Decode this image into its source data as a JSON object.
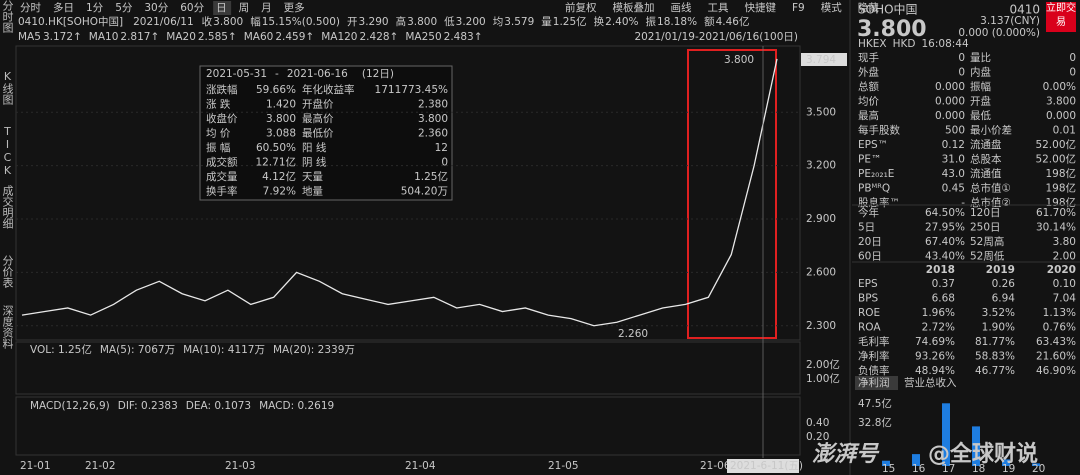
{
  "toolbar": {
    "left": [
      "分时",
      "多日",
      "1分",
      "5分",
      "30分",
      "60分",
      "日",
      "周",
      "月",
      "更多"
    ],
    "right": [
      "前复权",
      "模板叠加",
      "画线",
      "工具",
      "快捷键",
      "F9",
      "模式",
      "隐藏"
    ]
  },
  "side_tabs": [
    "分时图",
    "K线图",
    "TICK",
    "成交明细",
    "分价表",
    "深度资料"
  ],
  "info": {
    "code": "0410.HK[SOHO中国]",
    "date": "2021/06/11",
    "items": [
      {
        "label": "收",
        "value": "3.800"
      },
      {
        "label": "幅",
        "value": "15.15%(0.500)"
      },
      {
        "label": "开",
        "value": "3.290"
      },
      {
        "label": "高",
        "value": "3.800"
      },
      {
        "label": "低",
        "value": "3.200"
      },
      {
        "label": "均",
        "value": "3.579"
      },
      {
        "label": "量",
        "value": "1.25亿"
      },
      {
        "label": "换",
        "value": "2.40%"
      },
      {
        "label": "振",
        "value": "18.18%"
      },
      {
        "label": "额",
        "value": "4.46亿"
      }
    ]
  },
  "ma_bar": {
    "items": [
      {
        "label": "MA5",
        "value": "3.172↑"
      },
      {
        "label": "MA10",
        "value": "2.817↑"
      },
      {
        "label": "MA20",
        "value": "2.585↑"
      },
      {
        "label": "MA60",
        "value": "2.459↑"
      },
      {
        "label": "MA120",
        "value": "2.428↑"
      },
      {
        "label": "MA250",
        "value": "2.483↑"
      }
    ],
    "range": "2021/01/19-2021/06/16(100日)"
  },
  "price_chart": {
    "closes": [
      2.36,
      2.38,
      2.4,
      2.36,
      2.42,
      2.5,
      2.55,
      2.48,
      2.44,
      2.5,
      2.42,
      2.46,
      2.6,
      2.55,
      2.48,
      2.45,
      2.42,
      2.44,
      2.46,
      2.4,
      2.42,
      2.38,
      2.4,
      2.36,
      2.34,
      2.3,
      2.32,
      2.36,
      2.4,
      2.42,
      2.46,
      2.7,
      3.2,
      3.8
    ],
    "ylim": [
      2.22,
      3.85
    ],
    "yticks": [
      {
        "value": 3.5,
        "label": "3.500"
      },
      {
        "value": 3.2,
        "label": "3.200"
      },
      {
        "value": 2.9,
        "label": "2.900"
      },
      {
        "value": 2.6,
        "label": "2.600"
      },
      {
        "value": 2.3,
        "label": "2.300"
      }
    ],
    "current": "3.794",
    "high_label": "3.800",
    "low_label": "2.260"
  },
  "popup": {
    "start": "2021-05-31",
    "sep": "-",
    "end": "2021-06-16",
    "days": "(12日)",
    "rows": [
      [
        "涨跌幅",
        "59.66%",
        "年化收益率",
        "1711773.45%"
      ],
      [
        "涨 跌",
        "1.420",
        "开盘价",
        "2.380"
      ],
      [
        "收盘价",
        "3.800",
        "最高价",
        "3.800"
      ],
      [
        "均 价",
        "3.088",
        "最低价",
        "2.360"
      ],
      [
        "振 幅",
        "60.50%",
        "阳 线",
        "12"
      ],
      [
        "成交额",
        "12.71亿",
        "阴 线",
        "0"
      ],
      [
        "成交量",
        "4.12亿",
        "天量",
        "1.25亿"
      ],
      [
        "换手率",
        "7.92%",
        "地量",
        "504.20万"
      ]
    ]
  },
  "volume": {
    "items": [
      "VOL: 1.25亿",
      "MA(5): 7067万",
      "MA(10): 4117万",
      "MA(20): 2339万"
    ],
    "axis": [
      "2.00亿",
      "1.00亿"
    ]
  },
  "macd": {
    "items": [
      "MACD(12,26,9)",
      "DIF: 0.2383",
      "DEA: 0.1073",
      "MACD: 0.2619"
    ],
    "axis": [
      "0.40",
      "0.20"
    ]
  },
  "x_axis": [
    "21-01",
    "21-02",
    "21-03",
    "21-04",
    "21-05",
    "21-06"
  ],
  "cursor_date": "2021-6-11(五)",
  "quote": {
    "name": "SOHO中国",
    "code": "0410",
    "price": "3.800",
    "cny": "3.137(CNY)",
    "change": "0.000 (0.000%)",
    "exchange": "HKEX",
    "currency": "HKD",
    "time": "16:08:44",
    "trade_button": "立即交易",
    "rows": [
      [
        "现手",
        "0",
        "量比",
        "0"
      ],
      [
        "外盘",
        "0",
        "内盘",
        "0"
      ],
      [
        "总额",
        "0.000",
        "振幅",
        "0.00%"
      ],
      [
        "均价",
        "0.000",
        "开盘",
        "3.800"
      ],
      [
        "最高",
        "0.000",
        "最低",
        "0.000"
      ],
      [
        "每手股数",
        "500",
        "最小价差",
        "0.01"
      ],
      [
        "EPS™",
        "0.12",
        "流通盘",
        "52.00亿"
      ],
      [
        "PE™",
        "31.0",
        "总股本",
        "52.00亿"
      ],
      [
        "PE₂₀₂₁E",
        "43.0",
        "流通值",
        "198亿"
      ],
      [
        "PBᴹᴿQ",
        "0.45",
        "总市值①",
        "198亿"
      ],
      [
        "股息率™",
        "-",
        "总市值②",
        "198亿"
      ]
    ],
    "returns": [
      [
        "今年",
        "64.50%",
        "120日",
        "61.70%"
      ],
      [
        "5日",
        "27.95%",
        "250日",
        "30.14%"
      ],
      [
        "20日",
        "67.40%",
        "52周高",
        "3.80"
      ],
      [
        "60日",
        "43.40%",
        "52周低",
        "2.00"
      ]
    ]
  },
  "financials": {
    "years": [
      "2018",
      "2019",
      "2020"
    ],
    "rows": [
      [
        "EPS",
        "0.37",
        "0.26",
        "0.10"
      ],
      [
        "BPS",
        "6.68",
        "6.94",
        "7.04"
      ],
      [
        "ROE",
        "1.96%",
        "3.52%",
        "1.13%"
      ],
      [
        "ROA",
        "2.72%",
        "1.90%",
        "0.76%"
      ],
      [
        "毛利率",
        "74.69%",
        "81.77%",
        "63.43%"
      ],
      [
        "净利率",
        "93.26%",
        "58.83%",
        "21.60%"
      ],
      [
        "负债率",
        "48.94%",
        "46.77%",
        "46.90%"
      ]
    ]
  },
  "profit_chart": {
    "tabs": [
      "净利润",
      "营业总收入"
    ],
    "axis": [
      "47.5亿",
      "32.8亿"
    ],
    "years": [
      "15",
      "16",
      "17",
      "18",
      "19",
      "20"
    ],
    "values": [
      4,
      9,
      47.5,
      30,
      5,
      2
    ],
    "ylim": [
      0,
      50
    ]
  },
  "watermark": [
    "澎湃号",
    "@全球财说"
  ]
}
